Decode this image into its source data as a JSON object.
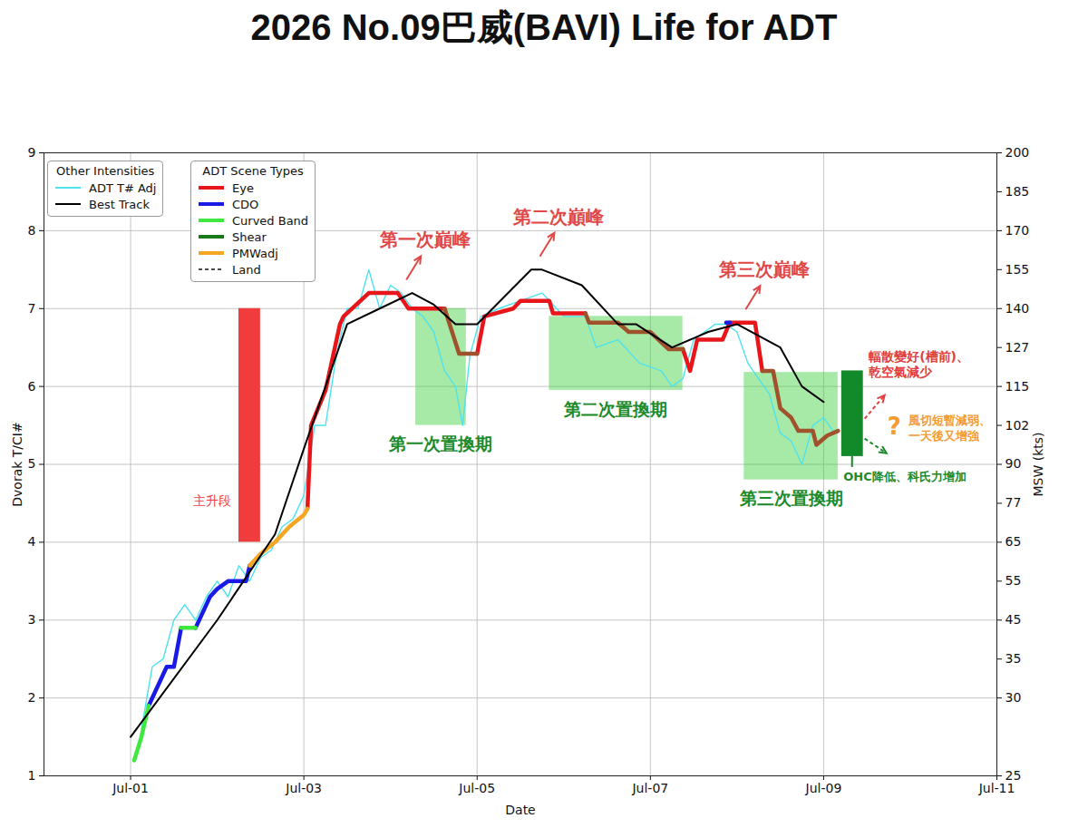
{
  "chart_data": {
    "type": "line",
    "title": "2026 No.09巴威(BAVI) Life for ADT",
    "xlabel": "Date",
    "ylabel": "Dvorak T/CI#",
    "y2label": "MSW (kts)",
    "xlim": [
      "2026-06-30T00:00Z",
      "2026-07-11T00:00Z"
    ],
    "xticks": [
      {
        "value": "2026-07-01",
        "label": "Jul-01"
      },
      {
        "value": "2026-07-03",
        "label": "Jul-03"
      },
      {
        "value": "2026-07-05",
        "label": "Jul-05"
      },
      {
        "value": "2026-07-07",
        "label": "Jul-07"
      },
      {
        "value": "2026-07-09",
        "label": "Jul-09"
      },
      {
        "value": "2026-07-11",
        "label": "Jul-11"
      }
    ],
    "ylim": [
      1,
      9
    ],
    "yticks": [
      1,
      2,
      3,
      4,
      5,
      6,
      7,
      8,
      9
    ],
    "y2lim": [
      25,
      200
    ],
    "y2ticks": [
      25,
      30,
      35,
      45,
      55,
      65,
      77,
      90,
      102,
      115,
      127,
      140,
      155,
      170,
      185,
      200
    ],
    "y2_dvorak_t": [
      1,
      2,
      2.5,
      3,
      3.5,
      4,
      4.5,
      5,
      5.5,
      6,
      6.5,
      7,
      7.5,
      8,
      8.5,
      9
    ],
    "grid": true,
    "legend": "upper left",
    "legend_groups": [
      {
        "title": "Other Intensities",
        "entries": [
          "ADT T# Adj",
          "Best Track"
        ]
      },
      {
        "title": "ADT Scene Types",
        "entries": [
          "Eye",
          "CDO",
          "Curved Band",
          "Shear",
          "PMWadj",
          "Land"
        ]
      }
    ],
    "series": [
      {
        "name": "ADT T# Adj",
        "color": "#4ee3ef",
        "line_style": "solid",
        "x": [
          "2026-07-01T03:00Z",
          "2026-07-01T06:00Z",
          "2026-07-01T09:00Z",
          "2026-07-01T12:00Z",
          "2026-07-01T15:00Z",
          "2026-07-01T18:00Z",
          "2026-07-01T21:00Z",
          "2026-07-02T00:00Z",
          "2026-07-02T03:00Z",
          "2026-07-02T06:00Z",
          "2026-07-02T09:00Z",
          "2026-07-02T12:00Z",
          "2026-07-02T15:00Z",
          "2026-07-02T18:00Z",
          "2026-07-02T21:00Z",
          "2026-07-03T00:00Z",
          "2026-07-03T03:00Z",
          "2026-07-03T06:00Z",
          "2026-07-03T09:00Z",
          "2026-07-03T12:00Z",
          "2026-07-03T15:00Z",
          "2026-07-03T18:00Z",
          "2026-07-03T21:00Z",
          "2026-07-04T00:00Z",
          "2026-07-04T03:00Z",
          "2026-07-04T06:00Z",
          "2026-07-04T09:00Z",
          "2026-07-04T12:00Z",
          "2026-07-04T15:00Z",
          "2026-07-04T18:00Z",
          "2026-07-04T20:00Z",
          "2026-07-04T22:00Z",
          "2026-07-05T01:00Z",
          "2026-07-05T06:00Z",
          "2026-07-05T12:00Z",
          "2026-07-05T18:00Z",
          "2026-07-06T00:00Z",
          "2026-07-06T06:00Z",
          "2026-07-06T09:00Z",
          "2026-07-06T15:00Z",
          "2026-07-06T21:00Z",
          "2026-07-07T03:00Z",
          "2026-07-07T06:00Z",
          "2026-07-07T09:00Z",
          "2026-07-07T12:00Z",
          "2026-07-07T15:00Z",
          "2026-07-07T18:00Z",
          "2026-07-07T21:00Z",
          "2026-07-08T00:00Z",
          "2026-07-08T03:00Z",
          "2026-07-08T06:00Z",
          "2026-07-08T09:00Z",
          "2026-07-08T12:00Z",
          "2026-07-08T15:00Z",
          "2026-07-08T18:00Z",
          "2026-07-08T21:00Z",
          "2026-07-09T00:00Z",
          "2026-07-09T03:00Z"
        ],
        "values": [
          1.6,
          2.4,
          2.5,
          3.0,
          3.2,
          3.0,
          3.3,
          3.5,
          3.3,
          3.7,
          3.5,
          3.8,
          3.9,
          4.2,
          4.3,
          4.6,
          5.5,
          5.5,
          6.4,
          7.0,
          7.0,
          7.5,
          7.0,
          7.3,
          7.2,
          7.0,
          6.9,
          6.7,
          6.2,
          6.0,
          5.5,
          6.4,
          6.9,
          7.0,
          7.1,
          7.2,
          6.9,
          6.9,
          6.5,
          6.6,
          6.3,
          6.2,
          6.0,
          6.1,
          6.6,
          6.7,
          6.8,
          6.8,
          6.7,
          6.3,
          6.1,
          5.9,
          5.4,
          5.3,
          5.0,
          5.5,
          5.6,
          5.4
        ]
      },
      {
        "name": "Eye",
        "color": "#e8161b",
        "line_style": "solid",
        "x": [
          "2026-07-03T01:00Z",
          "2026-07-03T02:00Z",
          "2026-07-03T06:00Z",
          "2026-07-03T10:00Z",
          "2026-07-03T11:00Z",
          "2026-07-03T18:00Z",
          "2026-07-04T02:00Z",
          "2026-07-04T05:00Z",
          "2026-07-04T15:00Z",
          "2026-07-04T20:00Z",
          "2026-07-05T00:00Z",
          "2026-07-05T02:00Z",
          "2026-07-05T10:00Z",
          "2026-07-05T12:00Z",
          "2026-07-05T20:00Z",
          "2026-07-05T21:00Z",
          "2026-07-06T06:00Z",
          "2026-07-06T20:00Z",
          "2026-07-07T09:00Z",
          "2026-07-07T11:00Z",
          "2026-07-07T13:00Z",
          "2026-07-07T20:00Z",
          "2026-07-07T22:00Z",
          "2026-07-08T05:00Z",
          "2026-07-08T07:00Z"
        ],
        "values": [
          4.43,
          5.5,
          5.95,
          6.8,
          6.9,
          7.2,
          7.2,
          7.0,
          7.0,
          null,
          6.42,
          6.9,
          7.0,
          7.1,
          7.1,
          6.94,
          6.94,
          null,
          6.48,
          6.2,
          6.6,
          6.6,
          6.82,
          6.82,
          6.2
        ]
      },
      {
        "color": "#a0522d",
        "line_style": "solid",
        "x": [
          "2026-07-04T15:00Z",
          "2026-07-04T19:00Z",
          "2026-07-04T22:00Z",
          "2026-07-05T00:00Z",
          "2026-07-05T12:00Z",
          "2026-07-06T06:00Z",
          "2026-07-06T07:00Z",
          "2026-07-06T15:00Z",
          "2026-07-06T18:00Z",
          "2026-07-07T00:00Z",
          "2026-07-07T05:00Z",
          "2026-07-07T09:00Z",
          "2026-07-07T20:00Z",
          "2026-07-08T07:00Z",
          "2026-07-08T10:00Z",
          "2026-07-08T12:00Z",
          "2026-07-08T15:00Z",
          "2026-07-08T17:00Z",
          "2026-07-08T21:00Z",
          "2026-07-08T22:00Z",
          "2026-07-09T01:00Z",
          "2026-07-09T04:00Z"
        ],
        "values": [
          7.0,
          6.42,
          6.42,
          6.42,
          null,
          6.94,
          6.82,
          6.82,
          6.7,
          6.7,
          6.48,
          6.48,
          null,
          6.2,
          6.2,
          5.72,
          5.6,
          5.43,
          5.43,
          5.25,
          5.37,
          5.43
        ]
      },
      {
        "name": "CDO",
        "color": "#1a1ae6",
        "line_style": "solid",
        "x": [
          "2026-07-01T05:00Z",
          "2026-07-01T08:00Z",
          "2026-07-01T10:00Z",
          "2026-07-01T12:00Z",
          "2026-07-01T14:00Z",
          "2026-07-01T16:00Z",
          "2026-07-01T18:00Z",
          "2026-07-01T22:00Z",
          "2026-07-02T00:00Z",
          "2026-07-02T03:00Z",
          "2026-07-02T08:00Z",
          "2026-07-02T09:00Z",
          "2026-07-05T00:00Z",
          "2026-07-07T21:00Z",
          "2026-07-07T22:00Z"
        ],
        "values": [
          1.9,
          2.2,
          2.4,
          2.4,
          2.9,
          null,
          2.9,
          3.3,
          3.4,
          3.5,
          3.5,
          3.7,
          null,
          6.82,
          6.82
        ]
      },
      {
        "name": "Curved Band",
        "color": "#3ee83e",
        "line_style": "solid",
        "x": [
          "2026-07-01T01:00Z",
          "2026-07-01T03:00Z",
          "2026-07-01T05:00Z",
          "2026-07-01T10:00Z",
          "2026-07-01T14:00Z",
          "2026-07-01T18:00Z"
        ],
        "values": [
          1.2,
          1.5,
          1.9,
          null,
          2.9,
          2.9
        ]
      },
      {
        "name": "Shear",
        "color": "#1a7a1a",
        "line_style": "solid",
        "x": [],
        "values": []
      },
      {
        "name": "PMWadj",
        "color": "#f5a623",
        "line_style": "solid",
        "x": [
          "2026-07-02T09:00Z",
          "2026-07-02T12:00Z",
          "2026-07-02T16:00Z",
          "2026-07-02T20:00Z",
          "2026-07-03T00:00Z",
          "2026-07-03T01:00Z"
        ],
        "values": [
          3.7,
          3.85,
          4.0,
          4.2,
          4.35,
          4.43
        ]
      },
      {
        "name": "Land",
        "color": "#111111",
        "line_style": "dashed",
        "x": [],
        "values": []
      },
      {
        "name": "Best Track",
        "color": "#000000",
        "line_style": "solid",
        "x": [
          "2026-07-01T00:00Z",
          "2026-07-02T00:00Z",
          "2026-07-02T16:00Z",
          "2026-07-03T00:00Z",
          "2026-07-03T12:00Z",
          "2026-07-03T21:00Z",
          "2026-07-04T06:00Z",
          "2026-07-04T12:00Z",
          "2026-07-04T18:00Z",
          "2026-07-05T00:00Z",
          "2026-07-05T15:00Z",
          "2026-07-05T18:00Z",
          "2026-07-06T05:00Z",
          "2026-07-06T15:00Z",
          "2026-07-06T20:00Z",
          "2026-07-07T06:00Z",
          "2026-07-07T16:00Z",
          "2026-07-08T00:00Z",
          "2026-07-08T12:00Z",
          "2026-07-08T18:00Z",
          "2026-07-09T00:00Z"
        ],
        "values": [
          1.5,
          3.0,
          4.1,
          5.2,
          6.8,
          7.0,
          7.2,
          7.05,
          6.8,
          6.8,
          7.5,
          7.5,
          7.3,
          6.8,
          6.8,
          6.5,
          6.7,
          6.8,
          6.5,
          6.0,
          5.8
        ]
      }
    ],
    "rapid_intensification": {
      "label": "主升段",
      "color": "#f03c3c",
      "x": [
        "2026-07-02T06:00Z",
        "2026-07-02T12:00Z"
      ],
      "y": [
        4,
        7
      ]
    },
    "peaks": [
      {
        "label": "第一次巔峰",
        "x": "2026-07-04T02:00Z",
        "y": 7.2
      },
      {
        "label": "第二次巔峰",
        "x": "2026-07-05T15:00Z",
        "y": 7.5
      },
      {
        "label": "第三次巔峰",
        "x": "2026-07-08T00:00Z",
        "y": 6.82
      }
    ],
    "peak_color": "#e04848",
    "replacement_periods": [
      {
        "label": "第一次置換期",
        "x": [
          "2026-07-04T07:00Z",
          "2026-07-04T21:00Z"
        ],
        "y": [
          5.5,
          7.0
        ]
      },
      {
        "label": "第二次置換期",
        "x": [
          "2026-07-05T20:00Z",
          "2026-07-07T09:00Z"
        ],
        "y": [
          5.95,
          6.9
        ]
      },
      {
        "label": "第三次置換期",
        "x": [
          "2026-07-08T02:00Z",
          "2026-07-09T04:00Z"
        ],
        "y": [
          4.8,
          6.18
        ]
      }
    ],
    "replacement_color": "#3ccf3c",
    "replacement_label_color": "#1a8a2a",
    "factors": {
      "color": "#138a2a",
      "x": [
        "2026-07-09T05:00Z",
        "2026-07-09T11:00Z"
      ],
      "y": [
        5.1,
        6.2
      ],
      "notes": [
        {
          "text": "輻散變好(槽前)、乾空氣減少",
          "color": "#e04040"
        },
        {
          "text": "?",
          "color": "#f39c33"
        },
        {
          "text": "風切短暫減弱、一天後又增強",
          "color": "#f39c33"
        },
        {
          "text": "OHC降低、科氏力增加",
          "color": "#1f8a2a"
        }
      ]
    }
  }
}
